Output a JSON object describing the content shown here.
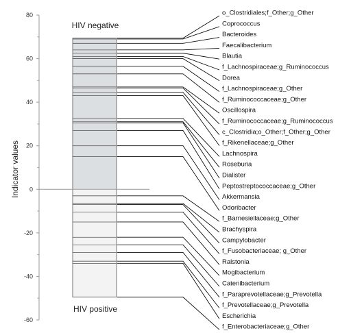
{
  "chart_data": {
    "type": "bar",
    "ylabel": "Indicator values",
    "ylim": [
      -60,
      80
    ],
    "yticks": [
      80,
      60,
      40,
      20,
      0,
      -20,
      -40,
      -60
    ],
    "groups": {
      "top": "HIV negative",
      "bottom": "HIV positive"
    },
    "colors": {
      "negative_fill": "#dcdfe2",
      "positive_fill": "#f3f3f3",
      "segment_line": "#555555",
      "zero_line": "#999999",
      "axis": "#9a9a9a"
    },
    "series": [
      {
        "name": "o_Clostridiales;f_Other;g_Other",
        "value": 69.4
      },
      {
        "name": "Coprococcus",
        "value": 69.0
      },
      {
        "name": "Bacteroides",
        "value": 67.0
      },
      {
        "name": "Faecalibacterium",
        "value": 64.0
      },
      {
        "name": "Blautia",
        "value": 62.5
      },
      {
        "name": "f_Lachnospiraceae;g_Ruminococcus",
        "value": 61.0
      },
      {
        "name": "Dorea",
        "value": 60.0
      },
      {
        "name": "f_Lachnospiraceae;g_Other",
        "value": 56.5
      },
      {
        "name": "f_Ruminococcaceae;g_Other",
        "value": 53.0
      },
      {
        "name": "Oscillospira",
        "value": 47.0
      },
      {
        "name": "f_Ruminococcaceae;g_Ruminococcus",
        "value": 46.5
      },
      {
        "name": "c_Clostridia;o_Other;f_Other;g_Other",
        "value": 44.5
      },
      {
        "name": "f_Rikenellaceae;g_Other",
        "value": 43.0
      },
      {
        "name": "Lachnospira",
        "value": 32.5
      },
      {
        "name": "Roseburia",
        "value": 31.0
      },
      {
        "name": "Dialister",
        "value": 30.5
      },
      {
        "name": "Peptostreptococcaceae;g_Other",
        "value": 27.0
      },
      {
        "name": "Akkermansia",
        "value": 20.0
      },
      {
        "name": "Odoribacter",
        "value": 15.0
      },
      {
        "name": "f_Barnesiellaceae;g_Other",
        "value": -3.0
      },
      {
        "name": "Brachyspira",
        "value": -6.5
      },
      {
        "name": "Campylobacter",
        "value": -7.0
      },
      {
        "name": "f_Fusobacteriaceae; g_Other",
        "value": -10.5
      },
      {
        "name": "Ralstonia",
        "value": -15.0
      },
      {
        "name": "Mogibacterium",
        "value": -22.0
      },
      {
        "name": "Catenibacterium",
        "value": -25.5
      },
      {
        "name": "f_Paraprevotellaceae;g_Prevotella",
        "value": -29.0
      },
      {
        "name": "f_Prevotellaceae;g_Prevotella",
        "value": -33.0
      },
      {
        "name": "Escherichia",
        "value": -34.0
      },
      {
        "name": "f_Enterobacteriaceae;g_Other",
        "value": -49.5
      }
    ]
  }
}
